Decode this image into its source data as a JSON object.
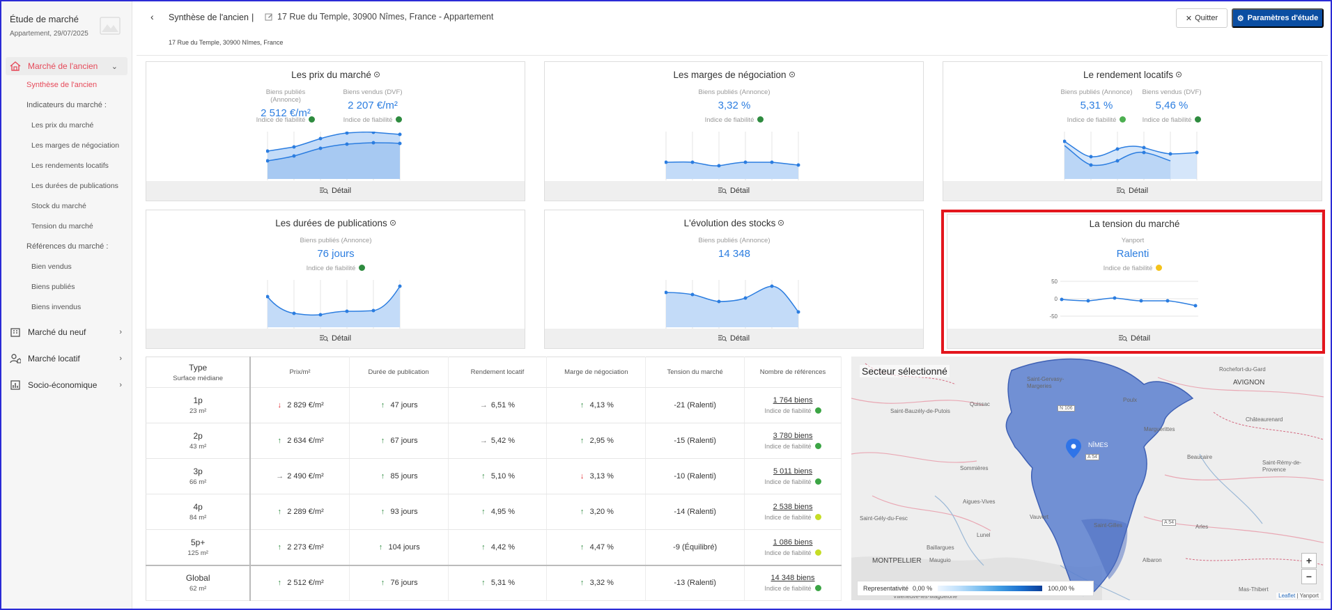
{
  "sidebar": {
    "title": "Étude de marché",
    "subtitle": "Appartement, 29/07/2025",
    "sections": [
      {
        "label": "Marché de l'ancien"
      },
      {
        "label": "Marché du neuf"
      },
      {
        "label": "Marché locatif"
      },
      {
        "label": "Socio-économique"
      }
    ],
    "subitems": {
      "synthese": "Synthèse de l'ancien",
      "indicateurs": "Indicateurs du marché :",
      "prix": "Les prix du marché",
      "marges": "Les marges de négociation",
      "rendements": "Les rendements locatifs",
      "durees": "Les durées de publications",
      "stock": "Stock du marché",
      "tension": "Tension du marché",
      "references": "Références du marché :",
      "vendus": "Bien vendus",
      "publies": "Biens publiés",
      "invendus": "Biens invendus"
    }
  },
  "header": {
    "title": "Synthèse de l'ancien",
    "separator": "|",
    "address": "17 Rue du Temple, 30900 Nîmes, France - Appartement",
    "small_address": "17 Rue du Temple, 30900 Nîmes, France",
    "quit": "Quitter",
    "params": "Paramètres d'étude"
  },
  "common": {
    "detail": "Détail",
    "fiabilite": "Indice de fiabilité"
  },
  "cards": {
    "prix": {
      "title": "Les prix du marché",
      "m1_label": "Biens publiés (Annonce)",
      "m1_value": "2 512 €/m²",
      "m2_label": "Biens vendus (DVF)",
      "m2_value": "2 207 €/m²"
    },
    "marges": {
      "title": "Les marges de négociation",
      "m1_label": "Biens publiés (Annonce)",
      "m1_value": "3,32 %"
    },
    "rendement": {
      "title": "Le rendement locatifs",
      "m1_label": "Biens publiés (Annonce)",
      "m1_value": "5,31 %",
      "m2_label": "Biens vendus (DVF)",
      "m2_value": "5,46 %"
    },
    "durees": {
      "title": "Les durées de publications",
      "m1_label": "Biens publiés (Annonce)",
      "m1_value": "76 jours"
    },
    "stocks": {
      "title": "L'évolution des stocks",
      "m1_label": "Biens publiés (Annonce)",
      "m1_value": "14 348"
    },
    "tension": {
      "title": "La tension du marché",
      "m1_label": "Yanport",
      "m1_value": "Ralenti",
      "y_ticks": [
        "50",
        "0",
        "-50"
      ]
    }
  },
  "table": {
    "headers": {
      "type": "Type",
      "type_sub": "Surface médiane",
      "prix": "Prix/m²",
      "duree": "Durée de publication",
      "rendement": "Rendement locatif",
      "marge": "Marge de négociation",
      "tension": "Tension du marché",
      "refs": "Nombre de références"
    },
    "rows": [
      {
        "type": "1p",
        "surface": "23 m²",
        "prix": "2 829 €/m²",
        "prix_t": "down",
        "duree": "47 jours",
        "duree_t": "up",
        "rend": "6,51 %",
        "rend_t": "flat",
        "marge": "4,13 %",
        "marge_t": "up",
        "tension": "-21 (Ralenti)",
        "refs": "1 764 biens",
        "fiab": "gg"
      },
      {
        "type": "2p",
        "surface": "43 m²",
        "prix": "2 634 €/m²",
        "prix_t": "up",
        "duree": "67 jours",
        "duree_t": "up",
        "rend": "5,42 %",
        "rend_t": "flat",
        "marge": "2,95 %",
        "marge_t": "up",
        "tension": "-15 (Ralenti)",
        "refs": "3 780 biens",
        "fiab": "gg"
      },
      {
        "type": "3p",
        "surface": "66 m²",
        "prix": "2 490 €/m²",
        "prix_t": "flat",
        "duree": "85 jours",
        "duree_t": "up",
        "rend": "5,10 %",
        "rend_t": "up",
        "marge": "3,13 %",
        "marge_t": "down",
        "tension": "-10 (Ralenti)",
        "refs": "5 011 biens",
        "fiab": "gg"
      },
      {
        "type": "4p",
        "surface": "84 m²",
        "prix": "2 289 €/m²",
        "prix_t": "up",
        "duree": "93 jours",
        "duree_t": "up",
        "rend": "4,95 %",
        "rend_t": "up",
        "marge": "3,20 %",
        "marge_t": "up",
        "tension": "-14 (Ralenti)",
        "refs": "2 538 biens",
        "fiab": "yg"
      },
      {
        "type": "5p+",
        "surface": "125 m²",
        "prix": "2 273 €/m²",
        "prix_t": "up",
        "duree": "104 jours",
        "duree_t": "up",
        "rend": "4,42 %",
        "rend_t": "up",
        "marge": "4,47 %",
        "marge_t": "up",
        "tension": "-9 (Équilibré)",
        "refs": "1 086 biens",
        "fiab": "yg"
      },
      {
        "type": "Global",
        "surface": "62 m²",
        "prix": "2 512 €/m²",
        "prix_t": "up",
        "duree": "76 jours",
        "duree_t": "up",
        "rend": "5,31 %",
        "rend_t": "up",
        "marge": "3,32 %",
        "marge_t": "up",
        "tension": "-13 (Ralenti)",
        "refs": "14 348 biens",
        "fiab": "gg"
      }
    ]
  },
  "map": {
    "title": "Secteur sélectionné",
    "labels": [
      "Rochefort-du-Gard",
      "AVIGNON",
      "Saint-Gervasy-Margeries",
      "Poulx",
      "Saint-Bauzély-de-Putois",
      "Quissac",
      "Châteaurenard",
      "N 106",
      "NÎMES",
      "Marguerittes",
      "A 54",
      "Beaucaire",
      "Sommières",
      "Saint-Rémy-de-Provence",
      "Aigues-Vives",
      "Vauvert",
      "Saint-Gilles",
      "A 54",
      "Arles",
      "Saint-Gély-du-Fesc",
      "Lunel",
      "Baillargues",
      "MONTPELLIER",
      "Mauguio",
      "Albaron",
      "Mas-Thibert",
      "Villeneuve-lès-Maguelone"
    ],
    "legend_label": "Representativité",
    "legend_min": "0,00 %",
    "legend_max": "100,00 %",
    "attrib_leaflet": "Leaflet",
    "attrib_rest": " | Yanport",
    "zoom_in": "+",
    "zoom_out": "−"
  },
  "colors": {
    "accent": "#2b7de0",
    "brand_button": "#0b4ea2",
    "active_red": "#e64a5a",
    "highlight": "#e3161d"
  }
}
